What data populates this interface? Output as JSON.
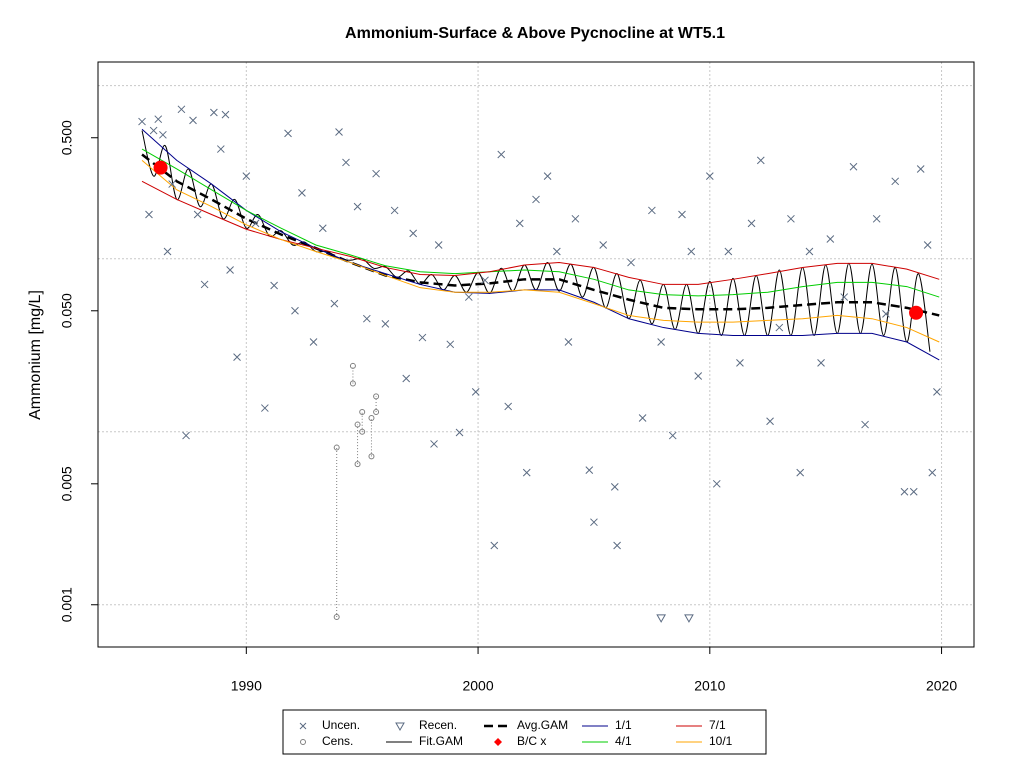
{
  "chart_data": {
    "type": "wq-gam",
    "title": "Ammonium-Surface & Above Pycnocline at WT5.1",
    "y_label": "Ammonium [mg/L]",
    "ylog": true,
    "xlim": [
      1983.6,
      2021.4
    ],
    "ylim": [
      0.00057,
      1.37
    ],
    "xticks": [
      1990,
      2000,
      2010,
      2020
    ],
    "yticks": [
      0.001,
      {
        "value": 0.005,
        "label": "0.005"
      },
      {
        "value": 0.05,
        "label": "0.050"
      },
      {
        "value": 0.5,
        "label": "0.500"
      }
    ],
    "ygrid": [
      0.001,
      0.01,
      0.1,
      1
    ],
    "grid": true,
    "series": [
      {
        "name": "Uncen.",
        "mark": "x",
        "color": "#5b6b82",
        "x": [
          1985.5,
          1985.8,
          1986.0,
          1986.2,
          1986.4,
          1986.6,
          1986.8,
          1987.2,
          1987.4,
          1987.7,
          1987.9,
          1988.2,
          1988.6,
          1988.9,
          1989.1,
          1989.3,
          1989.6,
          1990.0,
          1990.4,
          1990.8,
          1991.2,
          1991.8,
          1992.1,
          1992.4,
          1992.9,
          1993.3,
          1993.8,
          1994.0,
          1994.3,
          1994.8,
          1995.2,
          1995.6,
          1996.0,
          1996.4,
          1996.9,
          1997.2,
          1997.6,
          1998.1,
          1998.3,
          1998.8,
          1999.2,
          1999.6,
          1999.9,
          2000.3,
          2000.7,
          2001.0,
          2001.3,
          2001.8,
          2002.1,
          2002.5,
          2003.0,
          2003.4,
          2003.9,
          2004.2,
          2004.8,
          2005.0,
          2005.4,
          2005.9,
          2006.0,
          2006.6,
          2007.1,
          2007.5,
          2007.9,
          2008.4,
          2008.8,
          2009.2,
          2009.5,
          2010.0,
          2010.3,
          2010.8,
          2011.3,
          2011.8,
          2012.2,
          2012.6,
          2013.0,
          2013.5,
          2013.9,
          2014.3,
          2014.8,
          2015.2,
          2015.8,
          2016.2,
          2016.7,
          2017.2,
          2017.6,
          2018.0,
          2018.4,
          2018.8,
          2019.1,
          2019.4,
          2019.6,
          2019.8
        ],
        "values": [
          0.62,
          0.18,
          0.55,
          0.64,
          0.52,
          0.11,
          0.27,
          0.73,
          0.0095,
          0.63,
          0.18,
          0.071,
          0.7,
          0.43,
          0.68,
          0.086,
          0.027,
          0.3,
          0.16,
          0.0137,
          0.07,
          0.53,
          0.05,
          0.24,
          0.033,
          0.15,
          0.055,
          0.54,
          0.36,
          0.2,
          0.045,
          0.31,
          0.042,
          0.19,
          0.0203,
          0.14,
          0.035,
          0.0085,
          0.12,
          0.032,
          0.0099,
          0.06,
          0.017,
          0.075,
          0.0022,
          0.4,
          0.014,
          0.16,
          0.0058,
          0.22,
          0.3,
          0.11,
          0.033,
          0.17,
          0.006,
          0.003,
          0.12,
          0.0048,
          0.0022,
          0.095,
          0.012,
          0.19,
          0.033,
          0.0095,
          0.18,
          0.11,
          0.021,
          0.3,
          0.005,
          0.11,
          0.025,
          0.16,
          0.37,
          0.0115,
          0.04,
          0.17,
          0.0058,
          0.11,
          0.025,
          0.13,
          0.06,
          0.34,
          0.011,
          0.17,
          0.048,
          0.28,
          0.0045,
          0.0045,
          0.33,
          0.12,
          0.0058,
          0.017
        ]
      },
      {
        "name": "Cens.",
        "mark": "circle",
        "color": "#7f7f7f",
        "x": [
          1993.9,
          1994.6,
          1994.8,
          1995.0,
          1995.4,
          1995.6
        ],
        "values": [
          0.00085,
          0.019,
          0.0065,
          0.01,
          0.0072,
          0.013
        ],
        "upper": [
          0.0081,
          0.024,
          0.011,
          0.013,
          0.012,
          0.016
        ]
      },
      {
        "name": "Recen.",
        "mark": "triangle",
        "color": "#5b6b82",
        "x": [
          2007.9,
          2009.1
        ],
        "values": [
          0.00084,
          0.00084
        ]
      },
      {
        "name": "Fit.GAM",
        "mark": "line",
        "smooth": true,
        "color": "#000000",
        "width": 1,
        "x": [
          1985.5,
          1986,
          1986.5,
          1987,
          1987.5,
          1988,
          1988.5,
          1989,
          1989.5,
          1990,
          1990.5,
          1991,
          1991.5,
          1992,
          1992.5,
          1993,
          1993.5,
          1994,
          1994.5,
          1995,
          1995.5,
          1996,
          1996.5,
          1997,
          1997.5,
          1998,
          1998.5,
          1999,
          1999.5,
          2000,
          2000.5,
          2001,
          2001.5,
          2002,
          2002.5,
          2003,
          2003.5,
          2004,
          2004.5,
          2005,
          2005.5,
          2006,
          2006.5,
          2007,
          2007.5,
          2008,
          2008.5,
          2009,
          2009.5,
          2010,
          2010.5,
          2011,
          2011.5,
          2012,
          2012.5,
          2013,
          2013.5,
          2014,
          2014.5,
          2015,
          2015.5,
          2016,
          2016.5,
          2017,
          2017.5,
          2018,
          2018.5,
          2019,
          2019.5
        ],
        "values": [
          0.55,
          0.3,
          0.45,
          0.22,
          0.33,
          0.2,
          0.27,
          0.17,
          0.22,
          0.15,
          0.18,
          0.135,
          0.145,
          0.12,
          0.125,
          0.11,
          0.11,
          0.1,
          0.098,
          0.1,
          0.088,
          0.09,
          0.078,
          0.085,
          0.071,
          0.081,
          0.066,
          0.08,
          0.064,
          0.083,
          0.063,
          0.088,
          0.065,
          0.092,
          0.066,
          0.095,
          0.065,
          0.093,
          0.06,
          0.089,
          0.052,
          0.082,
          0.045,
          0.075,
          0.042,
          0.071,
          0.039,
          0.071,
          0.037,
          0.074,
          0.036,
          0.077,
          0.036,
          0.08,
          0.036,
          0.086,
          0.036,
          0.089,
          0.036,
          0.092,
          0.037,
          0.094,
          0.037,
          0.093,
          0.036,
          0.089,
          0.033,
          0.082,
          0.029
        ]
      },
      {
        "name": "Avg.GAM",
        "mark": "line",
        "dash": true,
        "color": "#000000",
        "width": 2.5,
        "x": [
          1985.5,
          1987,
          1988.5,
          1990,
          1991.5,
          1993,
          1994.5,
          1996,
          1997.5,
          1999,
          2000.5,
          2002,
          2003.5,
          2005,
          2006.5,
          2008,
          2009.5,
          2011,
          2012.5,
          2014,
          2015.5,
          2017,
          2018.5,
          2019.9
        ],
        "values": [
          0.4,
          0.28,
          0.22,
          0.17,
          0.138,
          0.115,
          0.095,
          0.08,
          0.073,
          0.07,
          0.072,
          0.076,
          0.076,
          0.066,
          0.058,
          0.052,
          0.051,
          0.051,
          0.052,
          0.054,
          0.056,
          0.056,
          0.052,
          0.047
        ]
      },
      {
        "name": "B/C x",
        "mark": "dot",
        "color": "#ff0000",
        "x": [
          1986.3,
          2018.9
        ],
        "values": [
          0.336,
          0.0487
        ]
      },
      {
        "name": "1/1",
        "mark": "line",
        "color": "#00008b",
        "width": 1,
        "x": [
          1985.5,
          1987,
          1988.5,
          1990,
          1991.5,
          1993,
          1994.5,
          1996,
          1997.5,
          1999,
          2000.5,
          2002,
          2003.5,
          2005,
          2006.5,
          2008,
          2009.5,
          2011,
          2012.5,
          2014,
          2015.5,
          2017,
          2018.5,
          2019.9
        ],
        "values": [
          0.56,
          0.37,
          0.27,
          0.19,
          0.143,
          0.115,
          0.095,
          0.082,
          0.071,
          0.064,
          0.063,
          0.066,
          0.066,
          0.056,
          0.045,
          0.04,
          0.037,
          0.036,
          0.036,
          0.036,
          0.037,
          0.037,
          0.033,
          0.026
        ]
      },
      {
        "name": "4/1",
        "mark": "line",
        "color": "#00cd00",
        "width": 1,
        "x": [
          1985.5,
          1987,
          1988.5,
          1990,
          1991.5,
          1993,
          1994.5,
          1996,
          1997.5,
          1999,
          2000.5,
          2002,
          2003.5,
          2005,
          2006.5,
          2008,
          2009.5,
          2011,
          2012.5,
          2014,
          2015.5,
          2017,
          2018.5,
          2019.9
        ],
        "values": [
          0.43,
          0.33,
          0.25,
          0.19,
          0.15,
          0.12,
          0.105,
          0.091,
          0.084,
          0.082,
          0.084,
          0.086,
          0.084,
          0.076,
          0.066,
          0.062,
          0.061,
          0.062,
          0.064,
          0.069,
          0.073,
          0.073,
          0.069,
          0.06
        ]
      },
      {
        "name": "7/1",
        "mark": "line",
        "color": "#cd0000",
        "width": 1,
        "x": [
          1985.5,
          1987,
          1988.5,
          1990,
          1991.5,
          1993,
          1994.5,
          1996,
          1997.5,
          1999,
          2000.5,
          2002,
          2003.5,
          2005,
          2006.5,
          2008,
          2009.5,
          2011,
          2012.5,
          2014,
          2015.5,
          2017,
          2018.5,
          2019.9
        ],
        "values": [
          0.28,
          0.22,
          0.18,
          0.148,
          0.129,
          0.115,
          0.103,
          0.089,
          0.081,
          0.08,
          0.084,
          0.092,
          0.095,
          0.089,
          0.078,
          0.071,
          0.071,
          0.076,
          0.082,
          0.089,
          0.094,
          0.094,
          0.087,
          0.076
        ]
      },
      {
        "name": "10/1",
        "mark": "line",
        "color": "#ffa500",
        "width": 1,
        "x": [
          1985.5,
          1987,
          1988.5,
          1990,
          1991.5,
          1993,
          1994.5,
          1996,
          1997.5,
          1999,
          2000.5,
          2002,
          2003.5,
          2005,
          2006.5,
          2008,
          2009.5,
          2011,
          2012.5,
          2014,
          2015.5,
          2017,
          2018.5,
          2019.9
        ],
        "values": [
          0.37,
          0.25,
          0.2,
          0.157,
          0.129,
          0.11,
          0.095,
          0.08,
          0.068,
          0.064,
          0.064,
          0.066,
          0.064,
          0.055,
          0.047,
          0.044,
          0.043,
          0.043,
          0.044,
          0.045,
          0.047,
          0.045,
          0.04,
          0.033
        ]
      }
    ]
  }
}
